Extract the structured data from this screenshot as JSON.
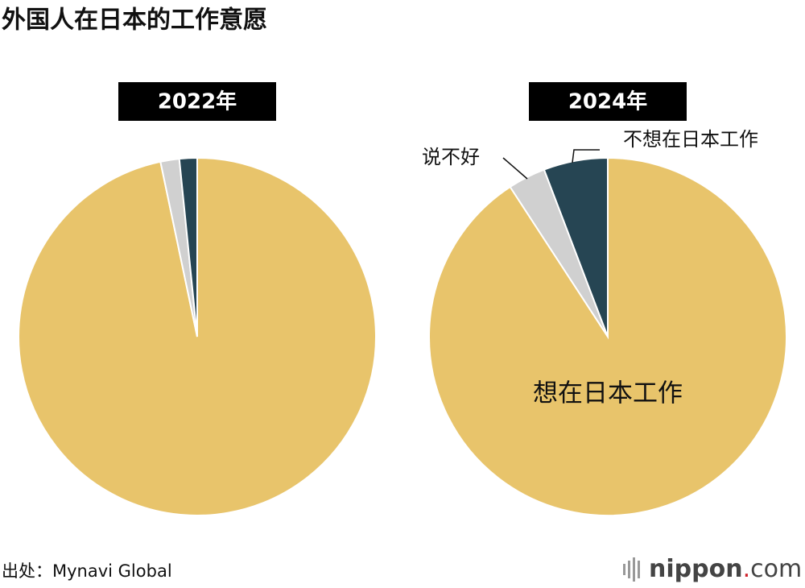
{
  "title": "外国人在日本的工作意愿",
  "source": "出处：Mynavi Global",
  "logo": [
    "nippon",
    ".",
    "com"
  ],
  "chart_data": [
    {
      "type": "pie",
      "title": "2022年",
      "categories": [
        null,
        null,
        null
      ],
      "values": [
        96.7,
        1.7,
        1.6
      ],
      "colors": [
        "#e8c46b",
        "#d0d0d0",
        "#264553"
      ]
    },
    {
      "type": "pie",
      "title": "2024年",
      "categories": [
        "想在日本工作",
        "说不好",
        "不想在日本工作"
      ],
      "values": [
        90.8,
        3.4,
        5.8
      ],
      "colors": [
        "#e8c46b",
        "#d0d0d0",
        "#264553"
      ]
    }
  ]
}
